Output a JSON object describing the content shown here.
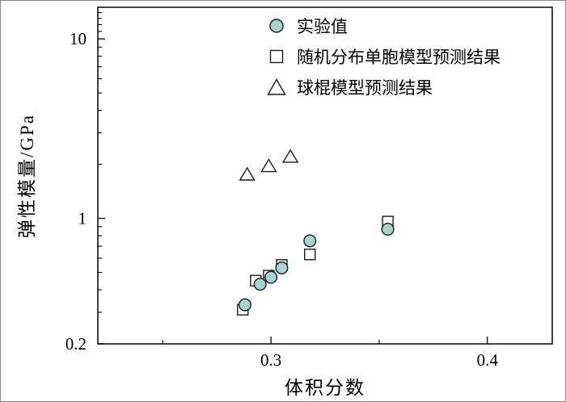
{
  "figure": {
    "background": "#ffffff",
    "border_color": "#8a8a8a"
  },
  "chart_data": {
    "type": "scatter",
    "title": "",
    "xlabel": "体积分数",
    "ylabel": "弹性模量/GPa",
    "x_scale": "linear",
    "y_scale": "log",
    "xlim": [
      0.22,
      0.43
    ],
    "ylim": [
      0.2,
      15
    ],
    "x_ticks": [
      0.3,
      0.4
    ],
    "x_minor_ticks": [
      0.25,
      0.35
    ],
    "y_ticks": [
      0.2,
      1,
      10
    ],
    "y_minor_ticks": [
      0.3,
      0.4,
      0.5,
      0.6,
      0.7,
      0.8,
      0.9,
      2,
      3,
      4,
      5,
      6,
      7,
      8,
      9,
      11,
      12,
      13,
      14
    ],
    "grid": false,
    "legend_position": "inside upper center-right",
    "axis_color": "#000000",
    "series": [
      {
        "name": "实验值",
        "marker": "circle",
        "marker_fill": "#a5d5d2",
        "marker_stroke": "#1c1c1c",
        "points": [
          [
            0.288,
            0.33
          ],
          [
            0.295,
            0.43
          ],
          [
            0.3,
            0.47
          ],
          [
            0.305,
            0.53
          ],
          [
            0.318,
            0.75
          ],
          [
            0.354,
            0.87
          ]
        ]
      },
      {
        "name": "随机分布单胞模型预测结果",
        "marker": "square",
        "marker_fill": "#ffffff",
        "marker_stroke": "#1c1c1c",
        "points": [
          [
            0.287,
            0.31
          ],
          [
            0.293,
            0.45
          ],
          [
            0.299,
            0.48
          ],
          [
            0.305,
            0.55
          ],
          [
            0.318,
            0.63
          ],
          [
            0.354,
            0.96
          ]
        ]
      },
      {
        "name": "球棍模型预测结果",
        "marker": "triangle",
        "marker_fill": "#ffffff",
        "marker_stroke": "#1c1c1c",
        "points": [
          [
            0.289,
            1.75
          ],
          [
            0.299,
            1.95
          ],
          [
            0.309,
            2.2
          ]
        ]
      }
    ]
  }
}
